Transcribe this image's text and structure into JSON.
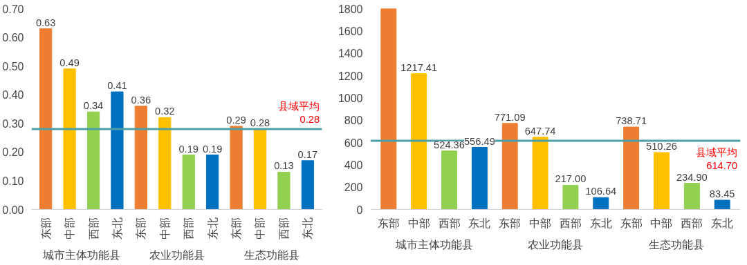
{
  "chart_data": [
    {
      "type": "bar",
      "categories": [
        "东部",
        "中部",
        "西部",
        "东北",
        "东部",
        "中部",
        "西部",
        "东北",
        "东部",
        "中部",
        "西部",
        "东北"
      ],
      "values": [
        0.63,
        0.49,
        0.34,
        0.41,
        0.36,
        0.32,
        0.19,
        0.19,
        0.29,
        0.28,
        0.13,
        0.17
      ],
      "colors": [
        "#ed7d31",
        "#ffc000",
        "#92d050",
        "#0070c0",
        "#ed7d31",
        "#ffc000",
        "#92d050",
        "#0070c0",
        "#ed7d31",
        "#ffc000",
        "#92d050",
        "#0070c0"
      ],
      "value_labels": [
        "0.63",
        "0.49",
        "0.34",
        "0.41",
        "0.36",
        "0.32",
        "0.19",
        "0.19",
        "0.29",
        "0.28",
        "0.13",
        "0.17"
      ],
      "ylim": [
        0,
        0.7
      ],
      "yticks": [
        {
          "value": 0,
          "label": "0.00"
        },
        {
          "value": 0.1,
          "label": "0.10"
        },
        {
          "value": 0.2,
          "label": "0.20"
        },
        {
          "value": 0.3,
          "label": "0.30"
        },
        {
          "value": 0.4,
          "label": "0.40"
        },
        {
          "value": 0.5,
          "label": "0.50"
        },
        {
          "value": 0.6,
          "label": "0.60"
        },
        {
          "value": 0.7,
          "label": "0.70"
        }
      ],
      "ref_lines": [
        {
          "axis": "y",
          "value": 0.28,
          "label": "县域平均\n0.28",
          "color": "#4a9fa8"
        }
      ],
      "annotations": [
        "城市主体功能县",
        "农业功能县",
        "生态功能县"
      ],
      "grid": false
    },
    {
      "type": "bar",
      "categories": [
        "东部",
        "中部",
        "西部",
        "东北",
        "东部",
        "中部",
        "西部",
        "东北",
        "东部",
        "中部",
        "西部",
        "东北"
      ],
      "values": [
        1800,
        1217.41,
        524.36,
        556.49,
        771.09,
        647.74,
        217.0,
        106.64,
        738.71,
        510.26,
        234.9,
        83.45
      ],
      "colors": [
        "#ed7d31",
        "#ffc000",
        "#92d050",
        "#0070c0",
        "#ed7d31",
        "#ffc000",
        "#92d050",
        "#0070c0",
        "#ed7d31",
        "#ffc000",
        "#92d050",
        "#0070c0"
      ],
      "value_labels": [
        null,
        "1217.41",
        "524.36",
        "556.49",
        "771.09",
        "647.74",
        "217.00",
        "106.64",
        "738.71",
        "510.26",
        "234.90",
        "83.45"
      ],
      "ylim": [
        0,
        1800
      ],
      "yticks": [
        0,
        200,
        400,
        600,
        800,
        1000,
        1200,
        1400,
        1600,
        1800
      ],
      "ref_lines": [
        {
          "axis": "y",
          "value": 614.7,
          "label": "县域平均\n614.70",
          "color": "#4a9fa8"
        }
      ],
      "annotations": [
        "城市主体功能县",
        "农业功能县",
        "生态功能县"
      ],
      "grid": false
    }
  ]
}
